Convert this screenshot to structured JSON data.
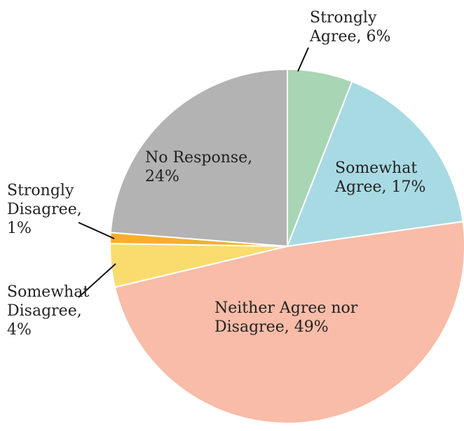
{
  "chart_data": {
    "type": "pie",
    "start": "top",
    "direction": "clockwise",
    "slices": [
      {
        "label_lines": [
          "Strongly",
          "Agree, 6%"
        ],
        "category": "Strongly Agree",
        "value": 6,
        "color": "#a8d5b4"
      },
      {
        "label_lines": [
          "Somewhat",
          "Agree, 17%"
        ],
        "category": "Somewhat Agree",
        "value": 17,
        "color": "#a8dae3"
      },
      {
        "label_lines": [
          "Neither Agree nor",
          "Disagree, 49%"
        ],
        "category": "Neither Agree nor Disagree",
        "value": 49,
        "color": "#f8bca8"
      },
      {
        "label_lines": [
          "Somewhat",
          "Disagree,",
          "4%"
        ],
        "category": "Somewhat Disagree",
        "value": 4,
        "color": "#fadc6e"
      },
      {
        "label_lines": [
          "Strongly",
          "Disagree,",
          "1%"
        ],
        "category": "Strongly Disagree",
        "value": 1,
        "color": "#f8ae2c"
      },
      {
        "label_lines": [
          "No Response,",
          "24%"
        ],
        "category": "No Response",
        "value": 24,
        "color": "#b3b3b3"
      }
    ]
  }
}
